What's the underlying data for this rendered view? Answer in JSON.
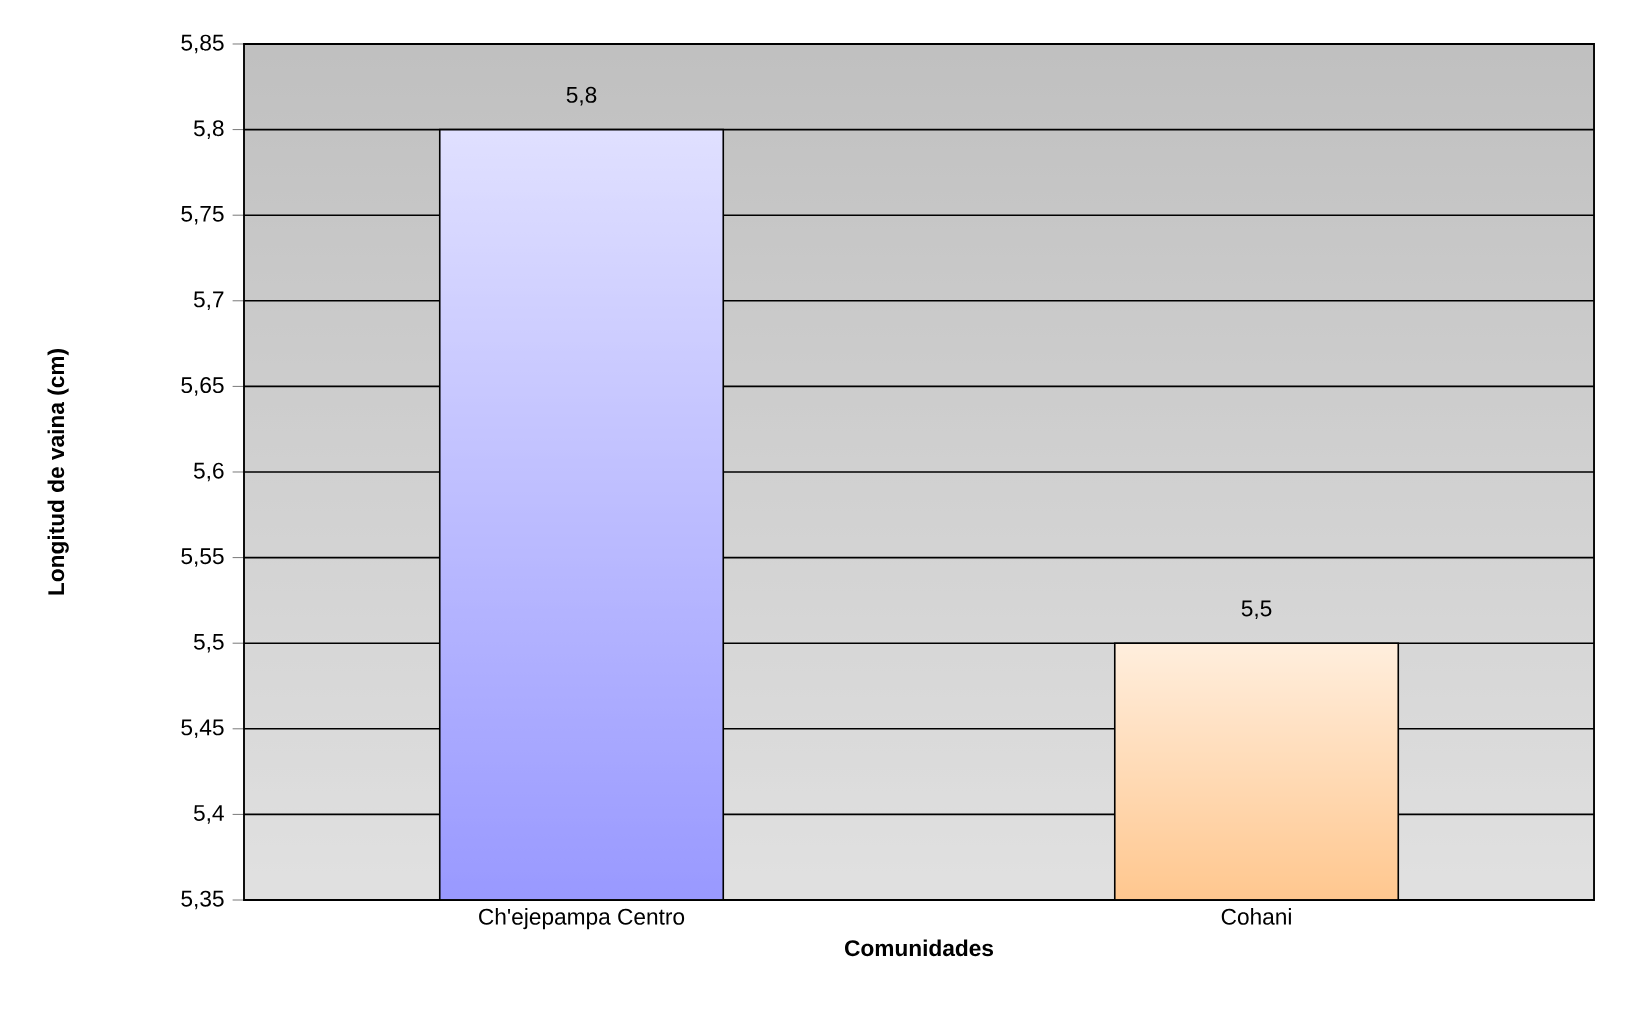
{
  "chart_data": {
    "type": "bar",
    "xlabel": "Comunidades",
    "ylabel": "Longitud de vaina (cm)",
    "categories": [
      "Ch'ejepampa Centro",
      "Cohani"
    ],
    "values": [
      5.8,
      5.5
    ],
    "colors": [
      "#9999ff",
      "#ffc78f"
    ],
    "value_labels": [
      "5,8",
      "5,5"
    ],
    "ylim": [
      5.35,
      5.85
    ],
    "yticks": [
      {
        "value": 5.35,
        "label": "5,35"
      },
      {
        "value": 5.4,
        "label": "5,4"
      },
      {
        "value": 5.45,
        "label": "5,45"
      },
      {
        "value": 5.5,
        "label": "5,5"
      },
      {
        "value": 5.55,
        "label": "5,55"
      },
      {
        "value": 5.6,
        "label": "5,6"
      },
      {
        "value": 5.65,
        "label": "5,65"
      },
      {
        "value": 5.7,
        "label": "5,7"
      },
      {
        "value": 5.75,
        "label": "5,75"
      },
      {
        "value": 5.8,
        "label": "5,8"
      },
      {
        "value": 5.85,
        "label": "5,85"
      }
    ],
    "grid": "y"
  }
}
